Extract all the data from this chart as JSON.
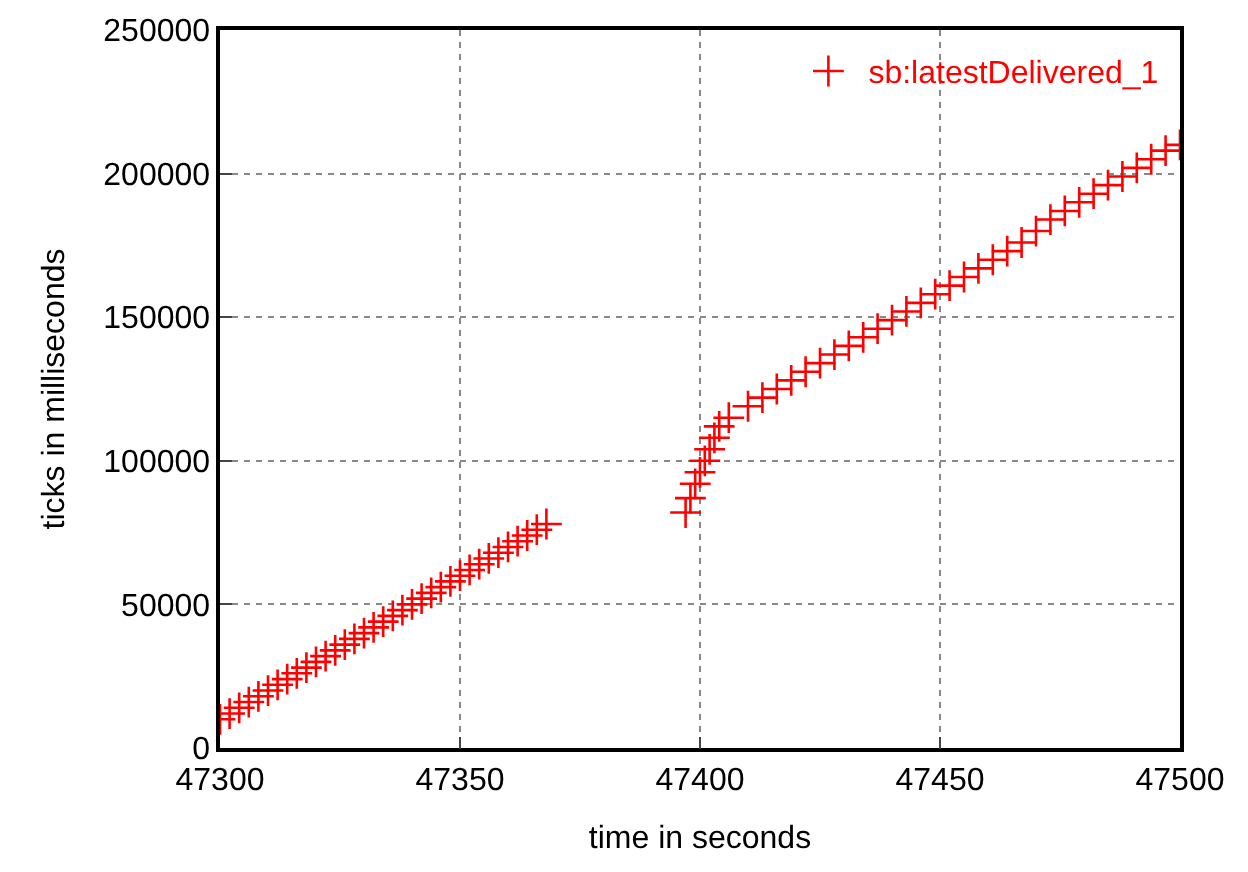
{
  "chart_data": {
    "type": "scatter",
    "xlabel": "time in seconds",
    "ylabel": "ticks in milliseconds",
    "xlim": [
      47300,
      47500
    ],
    "ylim": [
      0,
      250000
    ],
    "xticks": [
      47300,
      47350,
      47400,
      47450,
      47500
    ],
    "yticks": [
      0,
      50000,
      100000,
      150000,
      200000,
      250000
    ],
    "grid": true,
    "legend": "top right",
    "marker": "cross",
    "series": [
      {
        "name": "sb:latestDelivered_1",
        "color": "#ff0000",
        "x": [
          47300,
          47302,
          47304,
          47306,
          47308,
          47310,
          47312,
          47314,
          47316,
          47318,
          47320,
          47322,
          47324,
          47326,
          47328,
          47330,
          47332,
          47334,
          47336,
          47338,
          47340,
          47342,
          47344,
          47346,
          47348,
          47350,
          47352,
          47354,
          47356,
          47358,
          47360,
          47362,
          47364,
          47366,
          47368,
          47397,
          47398,
          47399,
          47400,
          47401,
          47402,
          47403,
          47404,
          47406,
          47410,
          47413,
          47416,
          47419,
          47422,
          47425,
          47428,
          47431,
          47434,
          47437,
          47440,
          47443,
          47446,
          47449,
          47452,
          47455,
          47458,
          47461,
          47464,
          47467,
          47470,
          47473,
          47476,
          47479,
          47482,
          47485,
          47488,
          47491,
          47494,
          47497,
          47500
        ],
        "values": [
          10000,
          12000,
          14000,
          16000,
          18000,
          20000,
          22000,
          24000,
          26000,
          28000,
          30000,
          32000,
          34000,
          36000,
          38000,
          40000,
          42000,
          44000,
          46000,
          48000,
          50000,
          52000,
          54000,
          56000,
          58000,
          60000,
          62000,
          64000,
          66000,
          68000,
          70000,
          72000,
          74000,
          76000,
          78000,
          82000,
          87000,
          92000,
          96000,
          100000,
          104000,
          108000,
          112000,
          115000,
          119000,
          122000,
          125000,
          128000,
          131000,
          134000,
          137000,
          140000,
          143000,
          146000,
          149000,
          152000,
          155000,
          158000,
          161000,
          164000,
          167000,
          170000,
          173000,
          176000,
          180000,
          184000,
          187000,
          190000,
          193000,
          196000,
          199000,
          202000,
          205000,
          208000,
          210000
        ]
      }
    ]
  }
}
